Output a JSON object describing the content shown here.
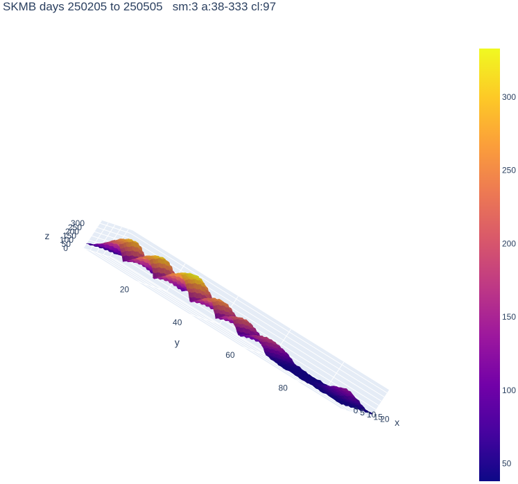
{
  "chart_data": {
    "type": "surface",
    "title": "SKMB days 250205 to 250505   sm:3 a:38-333 cl:97",
    "colorscale": [
      "#0d0887",
      "#46039f",
      "#7201a8",
      "#9c179e",
      "#bd3786",
      "#d8576b",
      "#ed7953",
      "#fb9f3a",
      "#fdca26",
      "#f0f921"
    ],
    "z_range": [
      38,
      333
    ],
    "x_axis": {
      "label": "x",
      "ticks": [
        "0",
        "5",
        "10",
        "15",
        "20"
      ],
      "range": [
        0,
        23
      ]
    },
    "y_axis": {
      "label": "y",
      "ticks": [
        "20",
        "40",
        "60",
        "80"
      ],
      "range": [
        0,
        97
      ]
    },
    "z_axis": {
      "label": "z",
      "ticks": [
        "0",
        "50",
        "100",
        "150",
        "200",
        "250",
        "300"
      ],
      "range": [
        0,
        333
      ]
    },
    "colorbar": {
      "ticks": [
        "50",
        "100",
        "150",
        "200",
        "250",
        "300"
      ],
      "values": [
        50,
        100,
        150,
        200,
        250,
        300
      ]
    },
    "ridges": [
      {
        "y_center": 8,
        "y_width": 3.5,
        "x_center": 9,
        "x_width": 7,
        "peak": 300
      },
      {
        "y_center": 19,
        "y_width": 3.5,
        "x_center": 8,
        "x_width": 8,
        "peak": 310
      },
      {
        "y_center": 31,
        "y_width": 4.5,
        "x_center": 8,
        "x_width": 9,
        "peak": 333
      },
      {
        "y_center": 43,
        "y_width": 3.5,
        "x_center": 7,
        "x_width": 8,
        "peak": 260
      },
      {
        "y_center": 52,
        "y_width": 3.0,
        "x_center": 7,
        "x_width": 8,
        "peak": 220
      },
      {
        "y_center": 62,
        "y_width": 3.5,
        "x_center": 8,
        "x_width": 8,
        "peak": 180
      },
      {
        "y_center": 88,
        "y_width": 3.0,
        "x_center": 17,
        "x_width": 4,
        "peak": 130
      }
    ],
    "baseline": 42
  }
}
